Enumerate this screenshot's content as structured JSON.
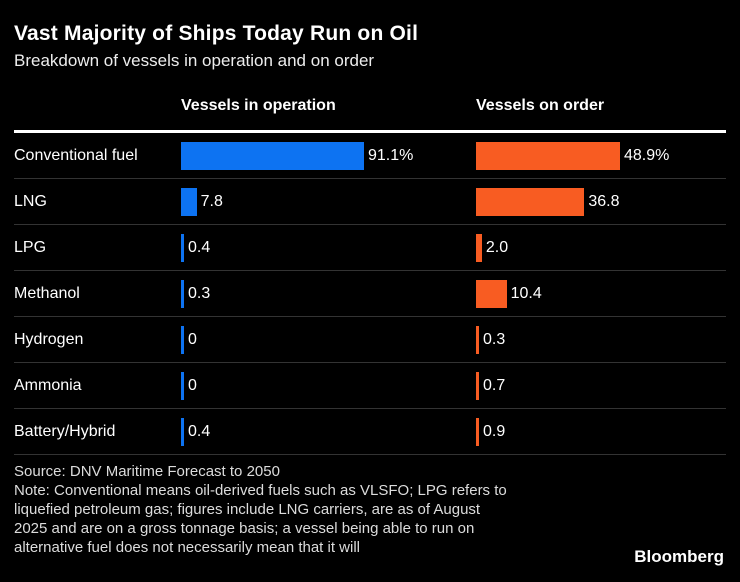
{
  "header": {
    "title": "Vast Majority of Ships Today Run on Oil",
    "subtitle": "Breakdown of vessels in operation and on order"
  },
  "columns": {
    "left_label": "Vessels in operation",
    "right_label": "Vessels on order"
  },
  "chart_data": {
    "type": "bar",
    "orientation": "horizontal",
    "title": "Vast Majority of Ships Today Run on Oil",
    "subtitle": "Breakdown of vessels in operation and on order",
    "unit": "%",
    "grid": false,
    "legend_position": "column-headers",
    "categories": [
      "Conventional fuel",
      "LNG",
      "LPG",
      "Methanol",
      "Hydrogen",
      "Ammonia",
      "Battery/Hybrid"
    ],
    "series": [
      {
        "name": "Vessels in operation",
        "color": "#0d73f2",
        "values": [
          91.1,
          7.8,
          0.4,
          0.3,
          0,
          0,
          0.4
        ],
        "labels": [
          "91.1%",
          "7.8",
          "0.4",
          "0.3",
          "0",
          "0",
          "0.4"
        ]
      },
      {
        "name": "Vessels on order",
        "color": "#f85c22",
        "values": [
          48.9,
          36.8,
          2.0,
          10.4,
          0.3,
          0.7,
          0.9
        ],
        "labels": [
          "48.9%",
          "36.8",
          "2.0",
          "10.4",
          "0.3",
          "0.7",
          "0.9"
        ]
      }
    ]
  },
  "footer": {
    "source": "Source: DNV Maritime Forecast to 2050",
    "note_lines": [
      "Note: Conventional means oil-derived fuels such as VLSFO; LPG refers to",
      "liquefied petroleum gas; figures include LNG carriers, are as of August",
      "2025 and are on a gross tonnage basis; a vessel being able to run on",
      "alternative fuel does not necessarily mean that it will"
    ],
    "brand": "Bloomberg"
  },
  "colors": {
    "background": "#000000",
    "bar_blue": "#0d73f2",
    "bar_orange": "#f85c22",
    "header_rule": "#ffffff",
    "row_divider": "#333333",
    "title_text": "#ffffff",
    "note_text": "#dcdcdc"
  }
}
